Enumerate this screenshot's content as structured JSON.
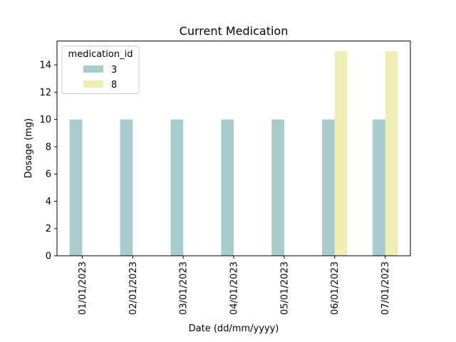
{
  "chart_data": {
    "type": "bar",
    "title": "Current Medication",
    "xlabel": "Date (dd/mm/yyyy)",
    "ylabel": "Dosage (mg)",
    "categories": [
      "01/01/2023",
      "02/01/2023",
      "03/01/2023",
      "04/01/2023",
      "05/01/2023",
      "06/01/2023",
      "07/01/2023"
    ],
    "series": [
      {
        "name": "3",
        "color": "#a8cbcc",
        "values": [
          10,
          10,
          10,
          10,
          10,
          10,
          10
        ]
      },
      {
        "name": "8",
        "color": "#eeeeb4",
        "values": [
          null,
          null,
          null,
          null,
          null,
          15,
          15
        ]
      }
    ],
    "ylim": [
      0,
      15.75
    ],
    "yticks": [
      0,
      2,
      4,
      6,
      8,
      10,
      12,
      14
    ],
    "legend": {
      "title": "medication_id",
      "placement": "upper-left"
    },
    "grid": false
  }
}
